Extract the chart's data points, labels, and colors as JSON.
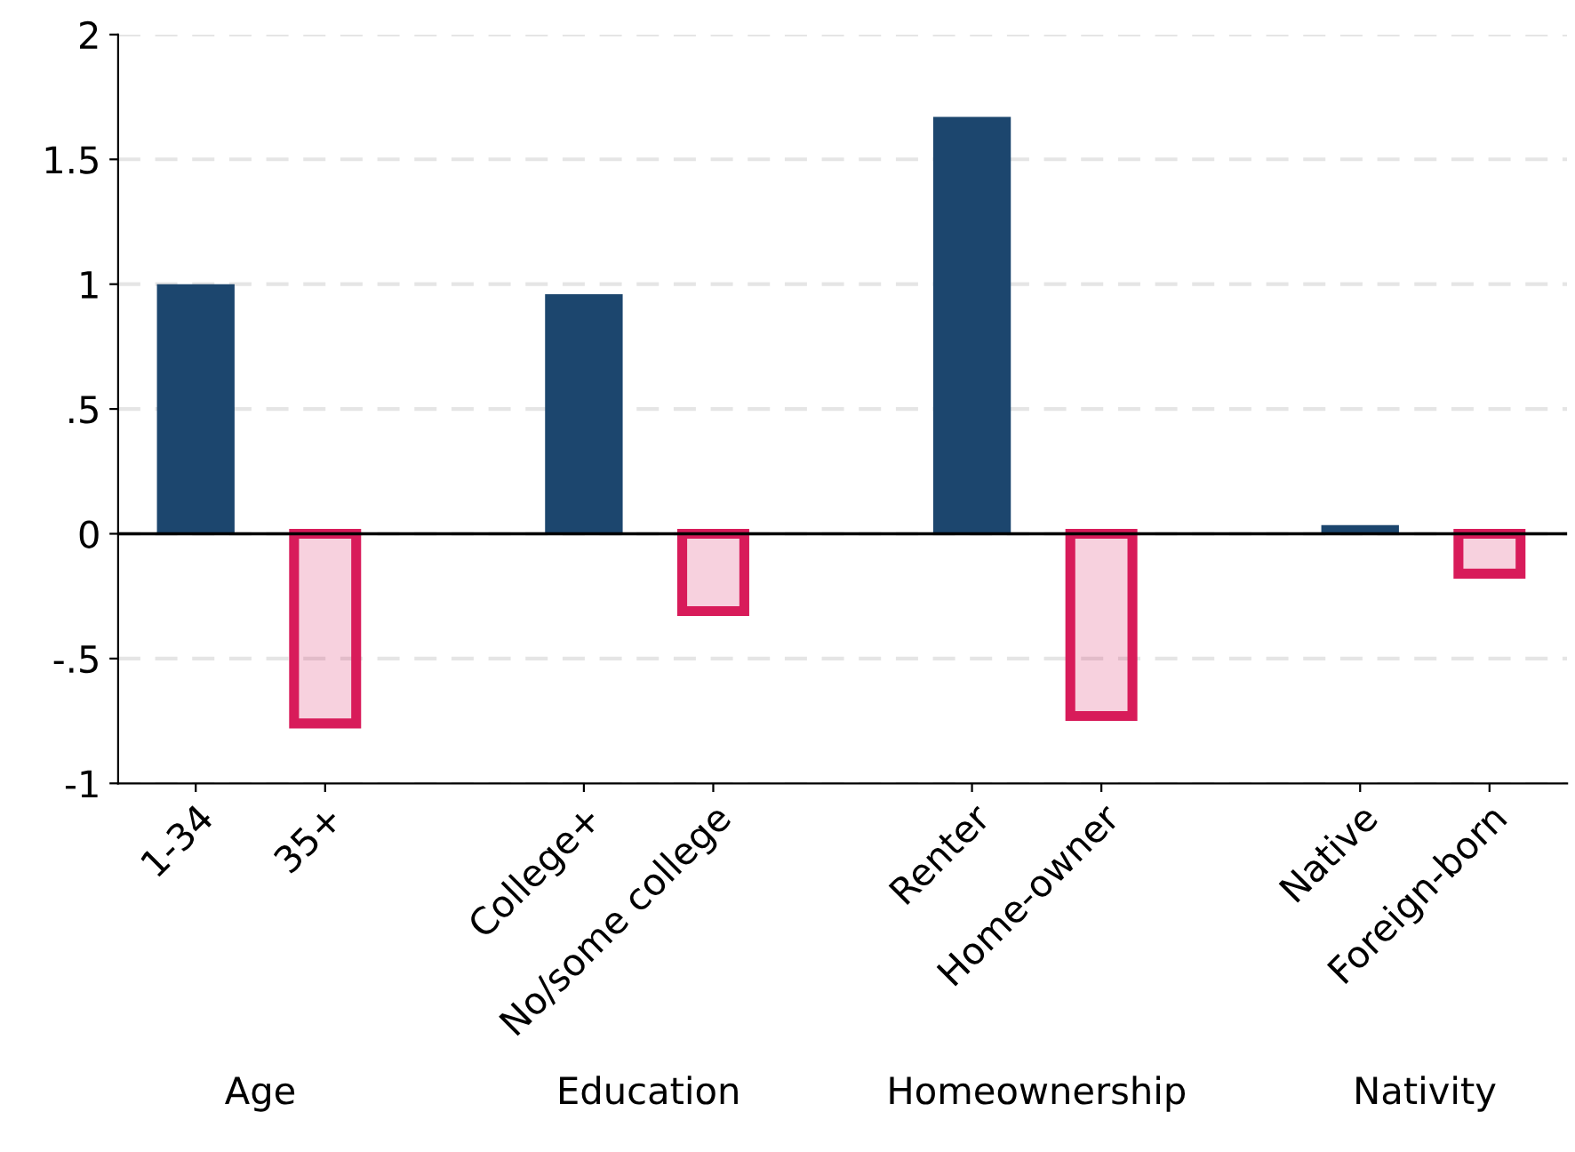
{
  "chart_data": {
    "type": "bar",
    "categories": [
      "1-34",
      "35+",
      null,
      "College+",
      "No/some college",
      null,
      "Renter",
      "Home-owner",
      null,
      "Native",
      "Foreign-born"
    ],
    "series": [
      {
        "color": "#1c466e",
        "values": [
          1.0,
          null,
          null,
          0.96,
          null,
          null,
          1.67,
          null,
          null,
          0.035,
          null
        ]
      },
      {
        "color": "#d81b5a",
        "values": [
          null,
          -0.76,
          null,
          null,
          -0.31,
          null,
          null,
          -0.73,
          null,
          null,
          -0.16
        ]
      }
    ],
    "ylim": [
      -1,
      2
    ],
    "yticks": [
      {
        "value": -1,
        "label": "-1"
      },
      {
        "value": -0.5,
        "label": "-.5"
      },
      0,
      {
        "value": 0.5,
        "label": ".5"
      },
      1,
      {
        "value": 1.5,
        "label": "1.5"
      },
      2
    ],
    "grid": "y",
    "ref_lines": [
      {
        "axis": "y",
        "value": 0,
        "color": "#000000"
      }
    ],
    "annotations": [
      "Age",
      "Education",
      "Homeownership",
      "Nativity"
    ]
  }
}
